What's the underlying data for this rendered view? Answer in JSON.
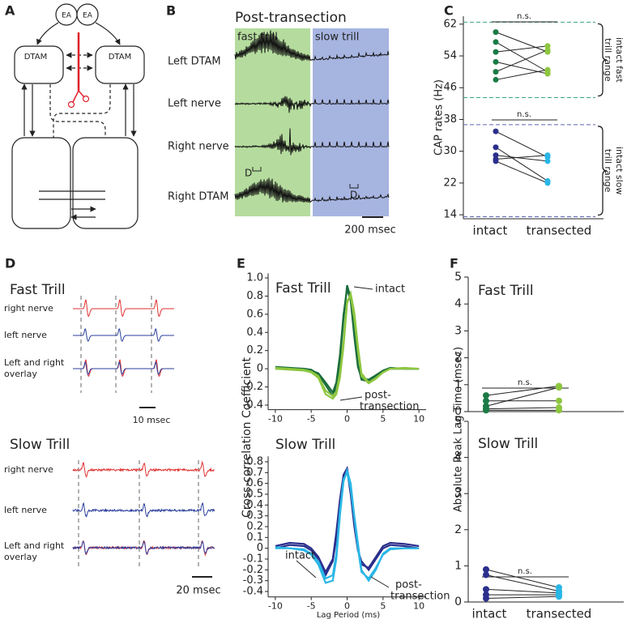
{
  "panel_labels": [
    "A",
    "B",
    "C",
    "D",
    "E",
    "F"
  ],
  "panel_a": {
    "nodes": [
      "EA",
      "EA",
      "DTAM",
      "DTAM"
    ]
  },
  "panel_b": {
    "title": "Post-transection",
    "regions": [
      "fast trill",
      "slow trill"
    ],
    "traces": [
      "Left DTAM",
      "Left nerve",
      "Right nerve",
      "Right DTAM"
    ],
    "markers": [
      "D",
      "D"
    ],
    "scale_bar": "200 msec"
  },
  "panel_d": {
    "sections": [
      {
        "title": "Fast Trill",
        "traces": [
          [
            "right nerve"
          ],
          [
            "left nerve"
          ],
          [
            "Left and right",
            "overlay"
          ]
        ],
        "scale_bar": "10 msec"
      },
      {
        "title": "Slow Trill",
        "traces": [
          [
            "right nerve"
          ],
          [
            "left nerve"
          ],
          [
            "Left and right",
            "overlay"
          ]
        ],
        "scale_bar": "20 msec"
      }
    ]
  },
  "chart_data": [
    {
      "type": "paired",
      "ylabel": "CAP rates (Hz)",
      "categories": [
        "intact",
        "transected"
      ],
      "ylim": [
        13,
        64
      ],
      "yticks": [
        14,
        22,
        30,
        38,
        46,
        54,
        62
      ],
      "groups": [
        {
          "label": [
            "intact fast",
            "trill range"
          ],
          "range": [
            43.5,
            62.5
          ],
          "range_color": "#3aa57a",
          "significance": "n.s.",
          "colors": [
            "#1b7a45",
            "#8dc63f"
          ],
          "intact": [
            60,
            57.5,
            55,
            52.5,
            50,
            48
          ],
          "transected": [
            55,
            50,
            56.5,
            49.5,
            55.5,
            50.5
          ]
        },
        {
          "label": [
            "intact slow",
            "trill range"
          ],
          "range": [
            13.5,
            36.7
          ],
          "range_color": "#5b63b0",
          "significance": "n.s.",
          "colors": [
            "#2b2f8c",
            "#29b6e6"
          ],
          "intact": [
            35,
            31,
            29,
            28,
            27.5
          ],
          "transected": [
            28.5,
            22.5,
            27.5,
            29,
            22
          ]
        }
      ]
    },
    {
      "type": "line",
      "title": "Fast Trill",
      "ylabel": "Cross-correlation Coefficient",
      "x": [
        -10,
        -8,
        -6,
        -5,
        -4,
        -3,
        -2,
        -1.5,
        -1,
        -0.5,
        0,
        0.5,
        1,
        1.5,
        2,
        3,
        4,
        5,
        6,
        8,
        10
      ],
      "xlim": [
        -11,
        11
      ],
      "xticks": [
        -10,
        -5,
        0,
        5,
        10
      ],
      "ylim": [
        -0.45,
        1.05
      ],
      "yticks": [
        {
          "value": 1,
          "label": "1.0"
        },
        0.8,
        0.6,
        0.4,
        0.2,
        0,
        -0.2,
        -0.4
      ],
      "series": [
        {
          "color": "#1b6e3c",
          "values": [
            0,
            0,
            0,
            -0.01,
            -0.06,
            -0.18,
            -0.3,
            -0.2,
            0.1,
            0.55,
            0.92,
            0.78,
            0.4,
            0.05,
            -0.12,
            -0.14,
            -0.08,
            -0.03,
            0,
            0,
            0
          ]
        },
        {
          "color": "#1b6e3c",
          "values": [
            0.02,
            0.01,
            0,
            -0.02,
            -0.05,
            -0.15,
            -0.26,
            -0.15,
            0.15,
            0.6,
            0.88,
            0.75,
            0.35,
            0.02,
            -0.1,
            -0.12,
            -0.07,
            -0.02,
            0.01,
            0,
            0
          ]
        },
        {
          "color": "#8dc63f",
          "values": [
            0,
            -0.01,
            -0.02,
            -0.04,
            -0.1,
            -0.28,
            -0.33,
            -0.28,
            -0.1,
            0.25,
            0.72,
            0.83,
            0.62,
            0.25,
            -0.05,
            -0.15,
            -0.1,
            -0.04,
            0,
            0,
            0
          ]
        },
        {
          "color": "#8dc63f",
          "values": [
            0.01,
            0,
            -0.01,
            -0.03,
            -0.08,
            -0.24,
            -0.3,
            -0.25,
            -0.05,
            0.3,
            0.75,
            0.8,
            0.55,
            0.2,
            -0.08,
            -0.16,
            -0.11,
            -0.04,
            0,
            0.01,
            0
          ]
        }
      ],
      "annotations": [
        {
          "text": [
            "intact"
          ]
        },
        {
          "text": [
            "post-",
            "transection"
          ]
        }
      ]
    },
    {
      "type": "line",
      "title": "Slow Trill",
      "xlabel": "Lag Period (ms)",
      "x": [
        -10,
        -8,
        -6,
        -5,
        -4,
        -3,
        -2,
        -1.5,
        -1,
        -0.5,
        0,
        0.5,
        1,
        1.5,
        2,
        3,
        4,
        5,
        6,
        8,
        10
      ],
      "xlim": [
        -11,
        11
      ],
      "xticks": [
        -10,
        -5,
        0,
        5,
        10
      ],
      "ylim": [
        -0.45,
        0.85
      ],
      "yticks": [
        0.8,
        0.7,
        0.6,
        0.5,
        0.4,
        0.3,
        0.2,
        0.1,
        0,
        -0.1,
        -0.2,
        -0.3,
        -0.4
      ],
      "series": [
        {
          "color": "#2b2f8c",
          "values": [
            0.02,
            0.05,
            0.04,
            0,
            -0.08,
            -0.22,
            -0.1,
            0.15,
            0.45,
            0.68,
            0.74,
            0.55,
            0.25,
            0,
            -0.15,
            -0.18,
            -0.08,
            0.02,
            0.05,
            0.04,
            0.02
          ]
        },
        {
          "color": "#2b2f8c",
          "values": [
            0,
            0.03,
            0.02,
            -0.02,
            -0.1,
            -0.25,
            -0.12,
            0.1,
            0.4,
            0.65,
            0.72,
            0.5,
            0.2,
            -0.02,
            -0.12,
            -0.2,
            -0.1,
            0,
            0.03,
            0.02,
            0
          ]
        },
        {
          "color": "#29b6e6",
          "values": [
            0,
            0,
            -0.02,
            -0.06,
            -0.15,
            -0.32,
            -0.3,
            -0.1,
            0.3,
            0.62,
            0.72,
            0.6,
            0.3,
            0.05,
            -0.2,
            -0.3,
            -0.2,
            -0.05,
            0,
            0,
            0
          ]
        },
        {
          "color": "#29b6e6",
          "values": [
            0.01,
            0,
            -0.01,
            -0.05,
            -0.12,
            -0.28,
            -0.25,
            -0.05,
            0.35,
            0.64,
            0.7,
            0.55,
            0.28,
            0,
            -0.22,
            -0.28,
            -0.18,
            -0.06,
            -0.01,
            0,
            0
          ]
        }
      ],
      "annotations": [
        {
          "text": [
            "intact"
          ]
        },
        {
          "text": [
            "post-",
            "transection"
          ]
        }
      ]
    },
    {
      "type": "paired",
      "title": "Fast Trill",
      "ylabel": "Absolute Peak Lag Time (msec)",
      "ylim": [
        0,
        5
      ],
      "yticks": [
        0,
        1,
        2,
        3,
        4,
        5
      ],
      "groups": [
        {
          "significance": "n.s.",
          "colors": [
            "#1b7a45",
            "#8dc63f"
          ],
          "intact": [
            0.6,
            0.4,
            0.2,
            0.1,
            0.05
          ],
          "transected": [
            0.95,
            0.4,
            0.9,
            0.15,
            0.05
          ]
        }
      ]
    },
    {
      "type": "paired",
      "title": "Slow Trill",
      "categories": [
        "intact",
        "transected"
      ],
      "ylim": [
        0,
        5
      ],
      "yticks": [
        0,
        1,
        2,
        3,
        4,
        5
      ],
      "groups": [
        {
          "significance": "n.s.",
          "colors": [
            "#2b2f8c",
            "#29b6e6"
          ],
          "intact": [
            0.9,
            0.75,
            0.35,
            0.2,
            0.1
          ],
          "transected": [
            0.4,
            0.3,
            0.25,
            0.2,
            0.15
          ]
        }
      ]
    }
  ]
}
